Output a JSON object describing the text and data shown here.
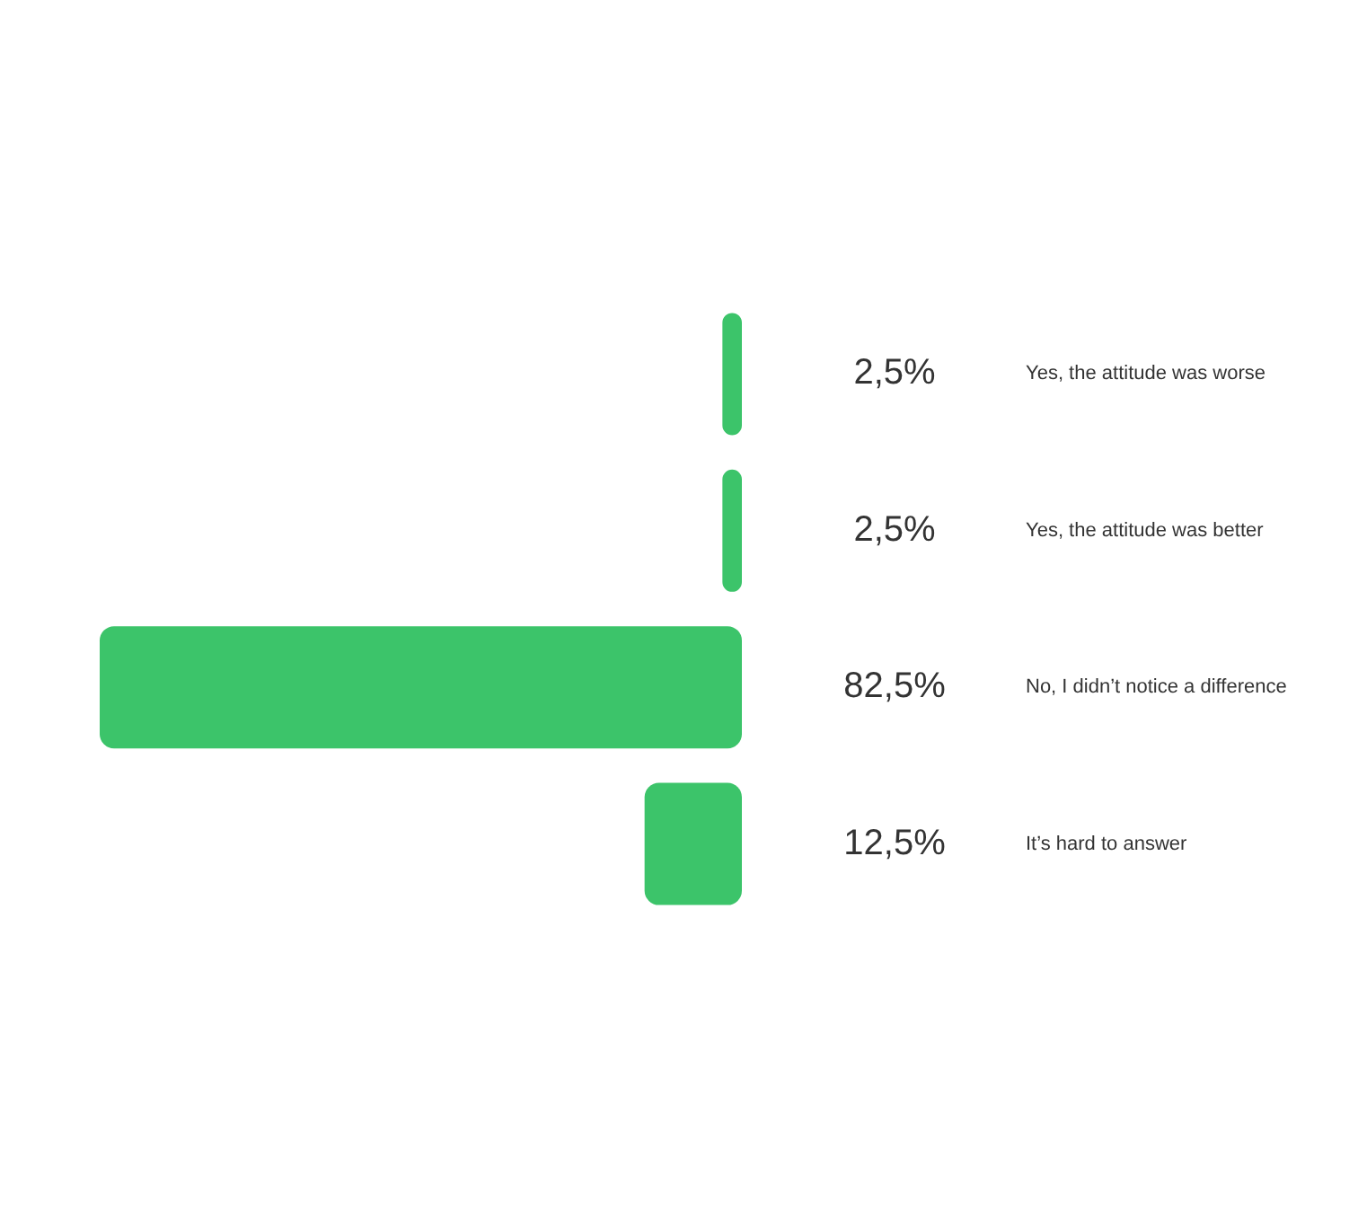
{
  "chart_data": {
    "type": "bar",
    "orientation": "horizontal",
    "categories": [
      "Yes, the attitude was worse",
      "Yes, the attitude was better",
      "No, I didn’t notice a difference",
      "It’s hard to answer"
    ],
    "values": [
      2.5,
      2.5,
      82.5,
      12.5
    ],
    "value_labels": [
      "2,5%",
      "2,5%",
      "82,5%",
      "12,5%"
    ],
    "tick_labels": "y",
    "color": "#3cc46a"
  }
}
